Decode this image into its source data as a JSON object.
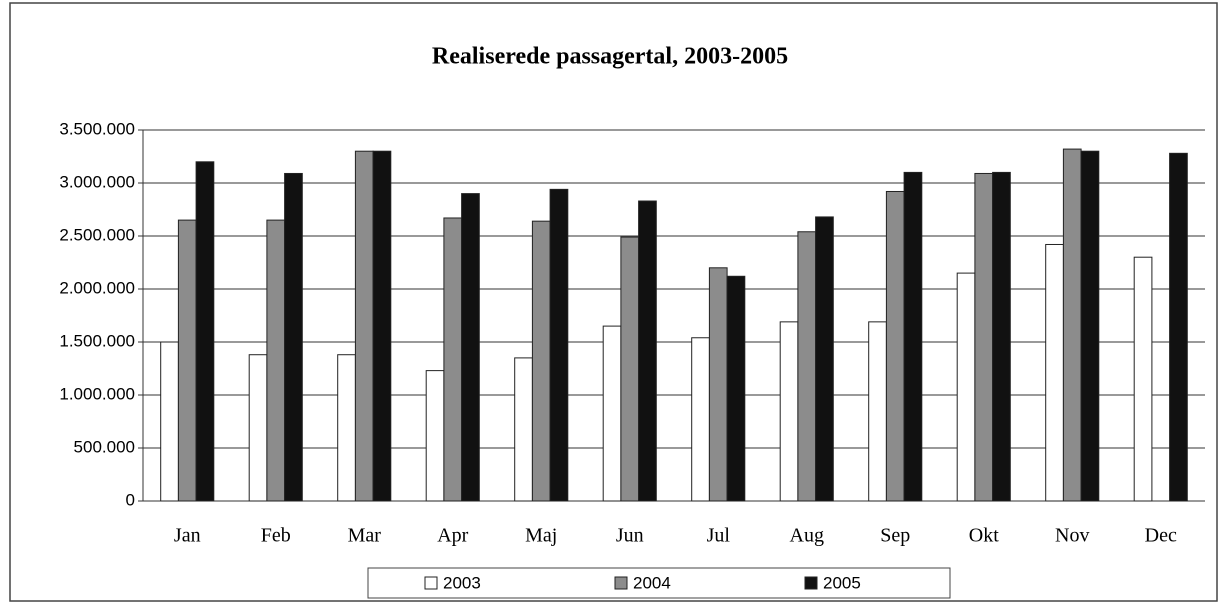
{
  "chart_data": {
    "type": "bar",
    "title": "Realiserede passagertal, 2003-2005",
    "categories": [
      "Jan",
      "Feb",
      "Mar",
      "Apr",
      "Maj",
      "Jun",
      "Jul",
      "Aug",
      "Sep",
      "Okt",
      "Nov",
      "Dec"
    ],
    "series": [
      {
        "name": "2003",
        "color": "#ffffff",
        "values": [
          1500000,
          1380000,
          1380000,
          1230000,
          1350000,
          1650000,
          1540000,
          1690000,
          1690000,
          2150000,
          2420000,
          2300000
        ]
      },
      {
        "name": "2004",
        "color": "#8c8c8c",
        "values": [
          2650000,
          2650000,
          3300000,
          2670000,
          2640000,
          2490000,
          2200000,
          2540000,
          2920000,
          3090000,
          3320000,
          null
        ]
      },
      {
        "name": "2005",
        "color": "#111111",
        "values": [
          3200000,
          3090000,
          3300000,
          2900000,
          2940000,
          2830000,
          2120000,
          2680000,
          3100000,
          3100000,
          3300000,
          3280000
        ]
      }
    ],
    "ylim": [
      0,
      3500000
    ],
    "yticks": [
      0,
      {
        "value": 500000,
        "label": "500.000"
      },
      {
        "value": 1000000,
        "label": "1.000.000"
      },
      {
        "value": 1500000,
        "label": "1.500.000"
      },
      {
        "value": 2000000,
        "label": "2.000.000"
      },
      {
        "value": 2500000,
        "label": "2.500.000"
      },
      {
        "value": 3000000,
        "label": "3.000.000"
      },
      {
        "value": 3500000,
        "label": "3.500.000"
      }
    ],
    "grid": true,
    "legend": "bottom"
  }
}
